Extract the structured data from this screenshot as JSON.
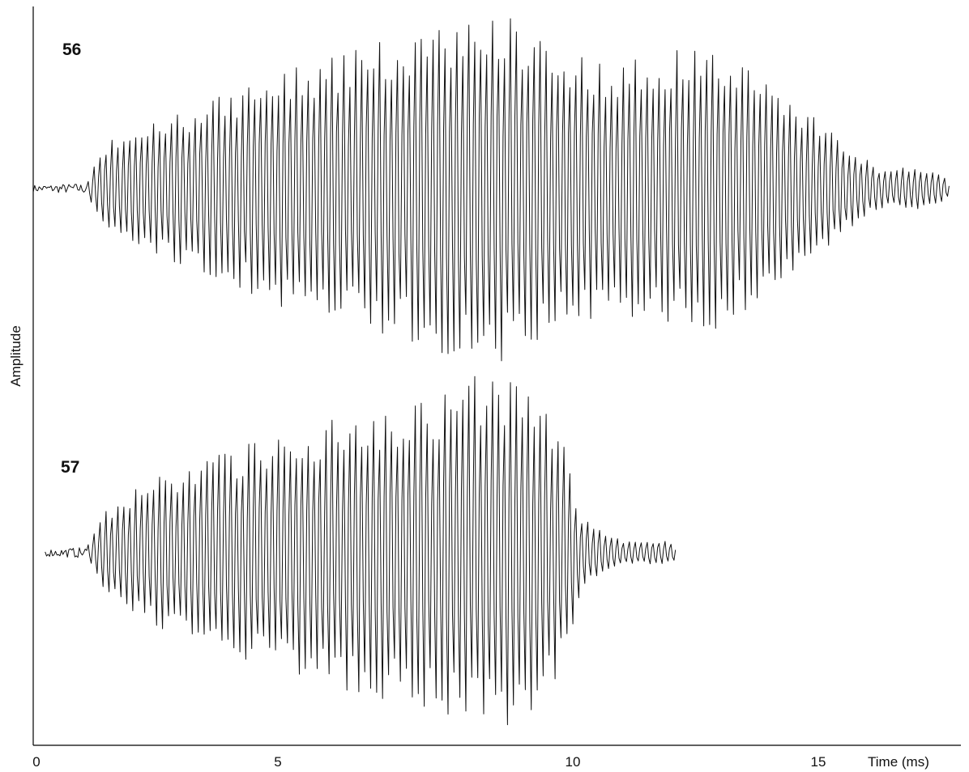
{
  "chart_data": {
    "type": "line",
    "title": "",
    "xlabel": "Time (ms)",
    "ylabel": "Amplitude",
    "xlim": [
      0,
      15.5
    ],
    "x_ticks": [
      "0",
      "5",
      "10",
      "15"
    ],
    "grid": false,
    "legend": "none",
    "series": [
      {
        "name": "56",
        "x_start": 0,
        "x_end": 15.4,
        "signal_onset": 0.9,
        "peak_time": 7.5,
        "envelope": [
          {
            "t": 0.0,
            "a": 0.02
          },
          {
            "t": 0.9,
            "a": 0.03
          },
          {
            "t": 1.2,
            "a": 0.25
          },
          {
            "t": 2.0,
            "a": 0.36
          },
          {
            "t": 3.0,
            "a": 0.48
          },
          {
            "t": 4.0,
            "a": 0.62
          },
          {
            "t": 5.0,
            "a": 0.72
          },
          {
            "t": 6.0,
            "a": 0.81
          },
          {
            "t": 7.0,
            "a": 0.9
          },
          {
            "t": 7.5,
            "a": 0.96
          },
          {
            "t": 8.0,
            "a": 0.95
          },
          {
            "t": 8.5,
            "a": 0.87
          },
          {
            "t": 9.0,
            "a": 0.75
          },
          {
            "t": 9.5,
            "a": 0.7
          },
          {
            "t": 10.0,
            "a": 0.69
          },
          {
            "t": 10.5,
            "a": 0.74
          },
          {
            "t": 11.0,
            "a": 0.78
          },
          {
            "t": 11.5,
            "a": 0.76
          },
          {
            "t": 12.0,
            "a": 0.68
          },
          {
            "t": 12.5,
            "a": 0.56
          },
          {
            "t": 13.0,
            "a": 0.44
          },
          {
            "t": 13.4,
            "a": 0.32
          },
          {
            "t": 13.8,
            "a": 0.2
          },
          {
            "t": 14.3,
            "a": 0.1
          },
          {
            "t": 14.8,
            "a": 0.12
          },
          {
            "t": 15.2,
            "a": 0.09
          },
          {
            "t": 15.4,
            "a": 0.04
          }
        ]
      },
      {
        "name": "57",
        "x_start": 0.2,
        "x_end": 10.8,
        "signal_onset": 0.9,
        "peak_time": 7.5,
        "envelope": [
          {
            "t": 0.2,
            "a": 0.02
          },
          {
            "t": 0.9,
            "a": 0.03
          },
          {
            "t": 1.2,
            "a": 0.22
          },
          {
            "t": 2.0,
            "a": 0.4
          },
          {
            "t": 3.0,
            "a": 0.52
          },
          {
            "t": 4.0,
            "a": 0.63
          },
          {
            "t": 5.0,
            "a": 0.72
          },
          {
            "t": 6.0,
            "a": 0.8
          },
          {
            "t": 7.0,
            "a": 0.88
          },
          {
            "t": 7.5,
            "a": 0.96
          },
          {
            "t": 8.0,
            "a": 0.94
          },
          {
            "t": 8.5,
            "a": 0.85
          },
          {
            "t": 8.9,
            "a": 0.62
          },
          {
            "t": 9.2,
            "a": 0.22
          },
          {
            "t": 9.6,
            "a": 0.1
          },
          {
            "t": 10.0,
            "a": 0.06
          },
          {
            "t": 10.5,
            "a": 0.07
          },
          {
            "t": 10.8,
            "a": 0.05
          }
        ]
      }
    ]
  }
}
